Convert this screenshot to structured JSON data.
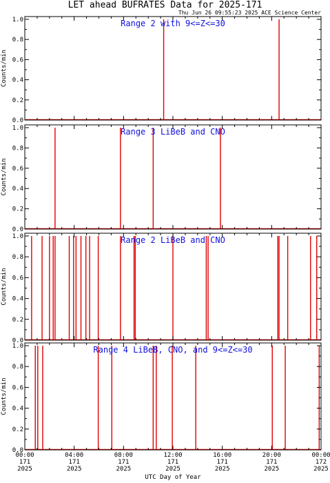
{
  "title": "LET ahead BUFRATES Data for 2025-171",
  "timestamp": "Thu Jun 26 09:55:23 2025 ACE Science Center",
  "xlabel": "UTC Day of Year",
  "colors": {
    "data": "#e00000",
    "label": "#1010dd",
    "axis": "#000000"
  },
  "chart_data": {
    "type": "line",
    "x_unit": "hours UTC",
    "xlim": [
      0,
      24
    ],
    "x_ticks": [
      {
        "time": "00:00",
        "doy": "171",
        "year": "2025"
      },
      {
        "time": "04:00",
        "doy": "171",
        "year": "2025"
      },
      {
        "time": "08:00",
        "doy": "171",
        "year": "2025"
      },
      {
        "time": "12:00",
        "doy": "171",
        "year": "2025"
      },
      {
        "time": "16:00",
        "doy": "171",
        "year": "2025"
      },
      {
        "time": "20:00",
        "doy": "171",
        "year": "2025"
      },
      {
        "time": "00:00",
        "doy": "172",
        "year": "2025"
      }
    ],
    "y_ticks": [
      "0.0",
      "0.2",
      "0.4",
      "0.6",
      "0.8",
      "1.0"
    ],
    "panels": [
      {
        "label": "Range 2 with 9<=Z<=30",
        "ylabel": "Counts/min",
        "ylim": [
          0,
          1
        ],
        "spikes": [
          11.25,
          20.6
        ]
      },
      {
        "label": "Range 3 LiBeB and CNO",
        "ylabel": "Counts/min",
        "ylim": [
          0,
          1
        ],
        "spikes": [
          2.45,
          7.75,
          10.4,
          15.85
        ]
      },
      {
        "label": "Range 2 LiBeB and CNO",
        "ylabel": "Counts/min",
        "ylim": [
          0,
          1
        ],
        "spikes": [
          0.55,
          1.4,
          2.0,
          2.3,
          2.45,
          3.6,
          3.95,
          4.15,
          4.55,
          4.95,
          5.25,
          5.95,
          7.75,
          8.85,
          8.95,
          12.0,
          14.7,
          14.85,
          20.5,
          20.6,
          21.3,
          23.15,
          23.65
        ]
      },
      {
        "label": "Range 4 LiBeB, CNO, and 9<=Z<=30",
        "ylabel": "Counts/min",
        "ylim": [
          0,
          1
        ],
        "spikes": [
          0.85,
          1.05,
          1.45,
          5.95,
          7.05,
          10.4,
          10.65,
          11.95,
          13.85,
          20.05,
          21.1,
          23.85
        ]
      }
    ]
  }
}
